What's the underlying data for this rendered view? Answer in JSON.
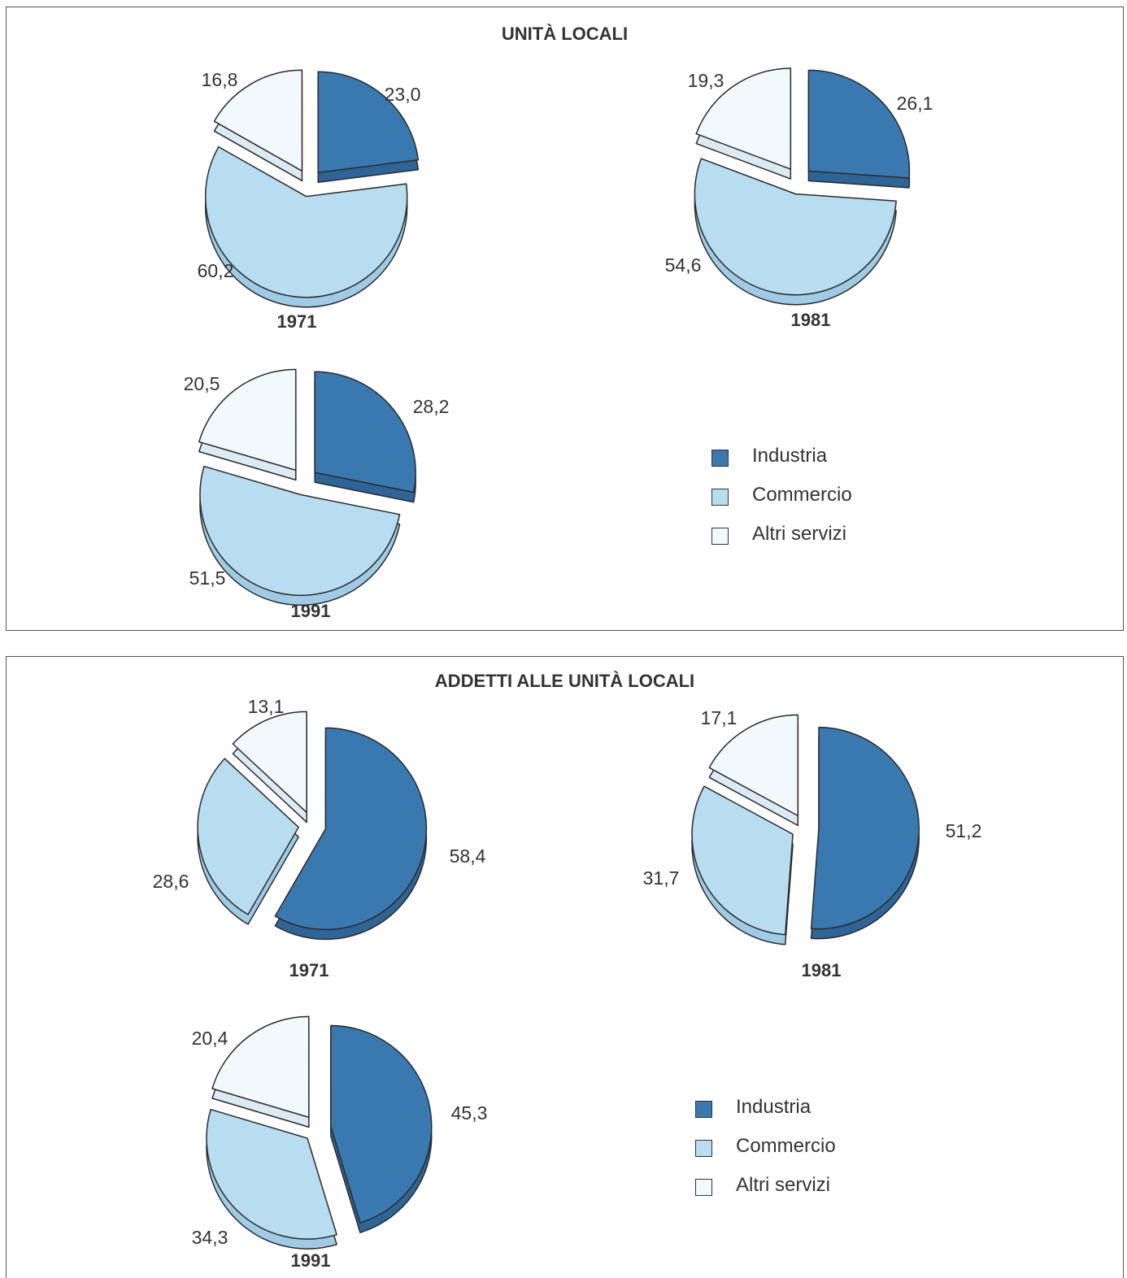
{
  "colors": {
    "industria": "#3a79b0",
    "industria_side": "#2f6596",
    "commercio": "#b8dcf0",
    "commercio_side": "#9fcbe5",
    "altri": "#f2f9fd",
    "altri_side": "#dbeaf3",
    "outline": "#2a2a2a"
  },
  "panels": [
    {
      "title": "UNITÀ LOCALI"
    },
    {
      "title": "ADDETTI ALLE UNITÀ LOCALI"
    }
  ],
  "legends": [
    {
      "items": [
        "Industria",
        "Commercio",
        "Altri servizi"
      ]
    },
    {
      "items": [
        "Industria",
        "Commercio",
        "Altri servizi"
      ]
    }
  ],
  "chart_data": [
    {
      "type": "pie",
      "title": "UNITÀ LOCALI",
      "charts": [
        {
          "year": "1971",
          "slices": [
            {
              "category": "Industria",
              "value": 23.0,
              "label": "23,0"
            },
            {
              "category": "Commercio",
              "value": 60.2,
              "label": "60,2"
            },
            {
              "category": "Altri servizi",
              "value": 16.8,
              "label": "16,8"
            }
          ]
        },
        {
          "year": "1981",
          "slices": [
            {
              "category": "Industria",
              "value": 26.1,
              "label": "26,1"
            },
            {
              "category": "Commercio",
              "value": 54.6,
              "label": "54,6"
            },
            {
              "category": "Altri servizi",
              "value": 19.3,
              "label": "19,3"
            }
          ]
        },
        {
          "year": "1991",
          "slices": [
            {
              "category": "Industria",
              "value": 28.2,
              "label": "28,2"
            },
            {
              "category": "Commercio",
              "value": 51.5,
              "label": "51,5"
            },
            {
              "category": "Altri servizi",
              "value": 20.5,
              "label": "20,5"
            }
          ]
        }
      ],
      "legend": [
        "Industria",
        "Commercio",
        "Altri servizi"
      ]
    },
    {
      "type": "pie",
      "title": "ADDETTI ALLE UNITÀ LOCALI",
      "charts": [
        {
          "year": "1971",
          "slices": [
            {
              "category": "Industria",
              "value": 58.4,
              "label": "58,4"
            },
            {
              "category": "Commercio",
              "value": 28.6,
              "label": "28,6"
            },
            {
              "category": "Altri servizi",
              "value": 13.1,
              "label": "13,1"
            }
          ]
        },
        {
          "year": "1981",
          "slices": [
            {
              "category": "Industria",
              "value": 51.2,
              "label": "51,2"
            },
            {
              "category": "Commercio",
              "value": 31.7,
              "label": "31,7"
            },
            {
              "category": "Altri servizi",
              "value": 17.1,
              "label": "17,1"
            }
          ]
        },
        {
          "year": "1991",
          "slices": [
            {
              "category": "Industria",
              "value": 45.3,
              "label": "45,3"
            },
            {
              "category": "Commercio",
              "value": 34.3,
              "label": "34,3"
            },
            {
              "category": "Altri servizi",
              "value": 20.4,
              "label": "20,4"
            }
          ]
        }
      ],
      "legend": [
        "Industria",
        "Commercio",
        "Altri servizi"
      ]
    }
  ]
}
